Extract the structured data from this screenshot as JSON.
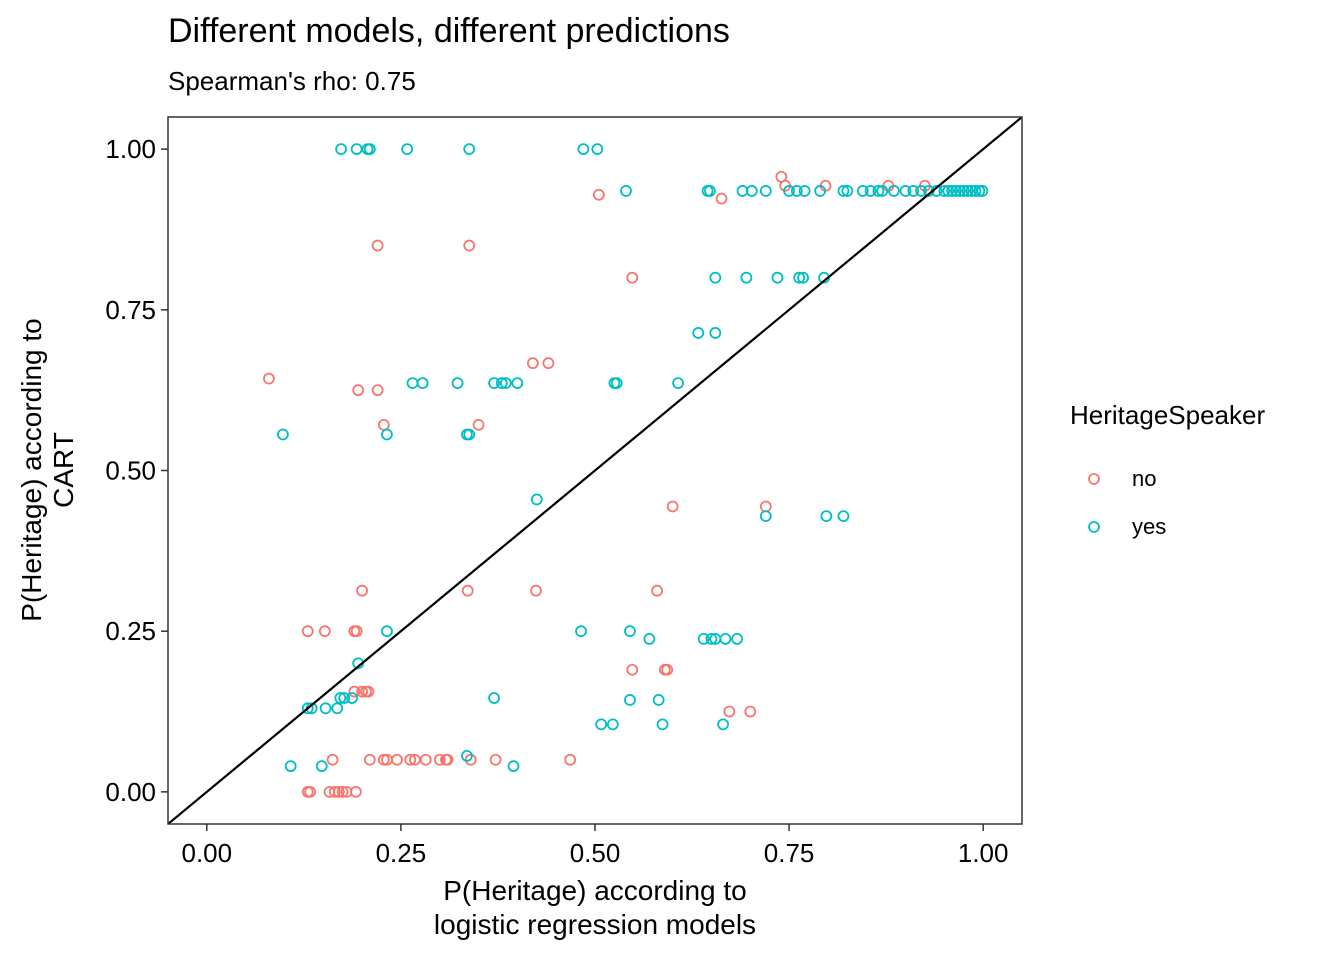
{
  "chart_data": {
    "type": "scatter",
    "title": "Different models, different predictions",
    "subtitle": "Spearman's rho: 0.75",
    "xlabel_lines": [
      "P(Heritage) according to",
      "logistic regression models"
    ],
    "ylabel_lines": [
      "P(Heritage) according to",
      "CART"
    ],
    "xlim": [
      -0.05,
      1.05
    ],
    "ylim": [
      -0.05,
      1.05
    ],
    "xticks": [
      0,
      0.25,
      0.5,
      0.75,
      1
    ],
    "xtick_labels": [
      "0.00",
      "0.25",
      "0.50",
      "0.75",
      "1.00"
    ],
    "yticks": [
      0,
      0.25,
      0.5,
      0.75,
      1
    ],
    "ytick_labels": [
      "0.00",
      "0.25",
      "0.50",
      "0.75",
      "1.00"
    ],
    "reference_line": {
      "slope": 1,
      "intercept": 0,
      "color": "#000000"
    },
    "legend": {
      "title": "HeritageSpeaker",
      "position": "right"
    },
    "series": [
      {
        "name": "no",
        "color": "#F8766D",
        "points": [
          [
            0.08,
            0.643
          ],
          [
            0.195,
            0.625
          ],
          [
            0.22,
            0.625
          ],
          [
            0.228,
            0.571
          ],
          [
            0.35,
            0.571
          ],
          [
            0.42,
            0.667
          ],
          [
            0.44,
            0.667
          ],
          [
            0.22,
            0.85
          ],
          [
            0.338,
            0.85
          ],
          [
            0.505,
            0.929
          ],
          [
            0.548,
            0.8
          ],
          [
            0.663,
            0.923
          ],
          [
            0.74,
            0.957
          ],
          [
            0.745,
            0.943
          ],
          [
            0.797,
            0.943
          ],
          [
            0.878,
            0.943
          ],
          [
            0.925,
            0.943
          ],
          [
            0.6,
            0.444
          ],
          [
            0.72,
            0.444
          ],
          [
            0.2,
            0.313
          ],
          [
            0.336,
            0.313
          ],
          [
            0.424,
            0.313
          ],
          [
            0.58,
            0.313
          ],
          [
            0.13,
            0.25
          ],
          [
            0.152,
            0.25
          ],
          [
            0.19,
            0.25
          ],
          [
            0.193,
            0.25
          ],
          [
            0.19,
            0.156
          ],
          [
            0.2,
            0.156
          ],
          [
            0.205,
            0.156
          ],
          [
            0.208,
            0.156
          ],
          [
            0.548,
            0.19
          ],
          [
            0.59,
            0.19
          ],
          [
            0.593,
            0.19
          ],
          [
            0.673,
            0.125
          ],
          [
            0.7,
            0.125
          ],
          [
            0.162,
            0.05
          ],
          [
            0.21,
            0.05
          ],
          [
            0.228,
            0.05
          ],
          [
            0.232,
            0.05
          ],
          [
            0.245,
            0.05
          ],
          [
            0.262,
            0.05
          ],
          [
            0.268,
            0.05
          ],
          [
            0.282,
            0.05
          ],
          [
            0.3,
            0.05
          ],
          [
            0.308,
            0.05
          ],
          [
            0.31,
            0.05
          ],
          [
            0.34,
            0.05
          ],
          [
            0.372,
            0.05
          ],
          [
            0.468,
            0.05
          ],
          [
            0.13,
            0.0
          ],
          [
            0.133,
            0.0
          ],
          [
            0.158,
            0.0
          ],
          [
            0.165,
            0.0
          ],
          [
            0.17,
            0.0
          ],
          [
            0.175,
            0.0
          ],
          [
            0.18,
            0.0
          ],
          [
            0.192,
            0.0
          ]
        ]
      },
      {
        "name": "yes",
        "color": "#00BFC4",
        "points": [
          [
            0.173,
            1.0
          ],
          [
            0.193,
            1.0
          ],
          [
            0.207,
            1.0
          ],
          [
            0.21,
            1.0
          ],
          [
            0.258,
            1.0
          ],
          [
            0.338,
            1.0
          ],
          [
            0.485,
            1.0
          ],
          [
            0.503,
            1.0
          ],
          [
            0.54,
            0.935
          ],
          [
            0.645,
            0.935
          ],
          [
            0.648,
            0.935
          ],
          [
            0.69,
            0.935
          ],
          [
            0.702,
            0.935
          ],
          [
            0.72,
            0.935
          ],
          [
            0.75,
            0.935
          ],
          [
            0.76,
            0.935
          ],
          [
            0.77,
            0.935
          ],
          [
            0.79,
            0.935
          ],
          [
            0.82,
            0.935
          ],
          [
            0.825,
            0.935
          ],
          [
            0.845,
            0.935
          ],
          [
            0.855,
            0.935
          ],
          [
            0.865,
            0.935
          ],
          [
            0.87,
            0.935
          ],
          [
            0.885,
            0.935
          ],
          [
            0.9,
            0.935
          ],
          [
            0.91,
            0.935
          ],
          [
            0.92,
            0.935
          ],
          [
            0.93,
            0.935
          ],
          [
            0.94,
            0.935
          ],
          [
            0.95,
            0.935
          ],
          [
            0.955,
            0.935
          ],
          [
            0.96,
            0.935
          ],
          [
            0.965,
            0.935
          ],
          [
            0.97,
            0.935
          ],
          [
            0.975,
            0.935
          ],
          [
            0.98,
            0.935
          ],
          [
            0.985,
            0.935
          ],
          [
            0.99,
            0.935
          ],
          [
            0.995,
            0.935
          ],
          [
            0.999,
            0.935
          ],
          [
            0.655,
            0.8
          ],
          [
            0.695,
            0.8
          ],
          [
            0.735,
            0.8
          ],
          [
            0.763,
            0.8
          ],
          [
            0.768,
            0.8
          ],
          [
            0.795,
            0.8
          ],
          [
            0.633,
            0.714
          ],
          [
            0.655,
            0.714
          ],
          [
            0.265,
            0.636
          ],
          [
            0.278,
            0.636
          ],
          [
            0.323,
            0.636
          ],
          [
            0.37,
            0.636
          ],
          [
            0.38,
            0.636
          ],
          [
            0.385,
            0.636
          ],
          [
            0.4,
            0.636
          ],
          [
            0.525,
            0.636
          ],
          [
            0.528,
            0.636
          ],
          [
            0.607,
            0.636
          ],
          [
            0.098,
            0.556
          ],
          [
            0.232,
            0.556
          ],
          [
            0.335,
            0.556
          ],
          [
            0.338,
            0.556
          ],
          [
            0.425,
            0.455
          ],
          [
            0.72,
            0.429
          ],
          [
            0.798,
            0.429
          ],
          [
            0.82,
            0.429
          ],
          [
            0.232,
            0.25
          ],
          [
            0.482,
            0.25
          ],
          [
            0.545,
            0.25
          ],
          [
            0.57,
            0.238
          ],
          [
            0.64,
            0.238
          ],
          [
            0.65,
            0.238
          ],
          [
            0.655,
            0.238
          ],
          [
            0.668,
            0.238
          ],
          [
            0.683,
            0.238
          ],
          [
            0.195,
            0.2
          ],
          [
            0.13,
            0.13
          ],
          [
            0.135,
            0.13
          ],
          [
            0.153,
            0.13
          ],
          [
            0.168,
            0.13
          ],
          [
            0.172,
            0.146
          ],
          [
            0.177,
            0.146
          ],
          [
            0.187,
            0.146
          ],
          [
            0.37,
            0.146
          ],
          [
            0.545,
            0.143
          ],
          [
            0.582,
            0.143
          ],
          [
            0.508,
            0.105
          ],
          [
            0.523,
            0.105
          ],
          [
            0.587,
            0.105
          ],
          [
            0.665,
            0.105
          ],
          [
            0.108,
            0.04
          ],
          [
            0.148,
            0.04
          ],
          [
            0.335,
            0.056
          ],
          [
            0.395,
            0.04
          ]
        ]
      }
    ]
  }
}
